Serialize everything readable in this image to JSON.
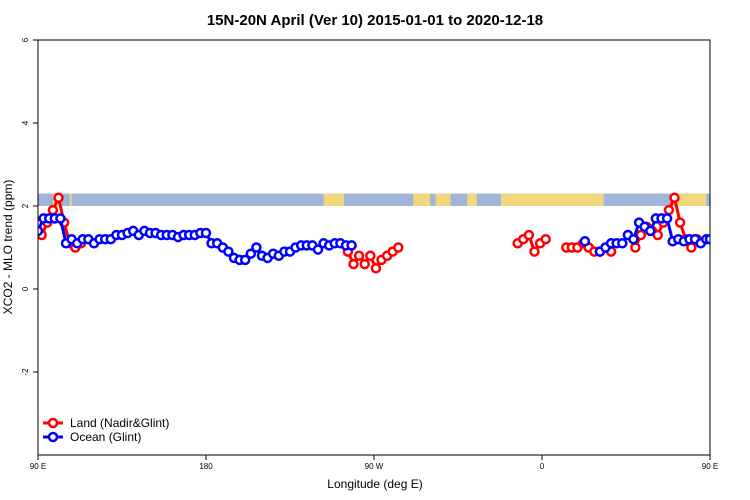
{
  "chart_data": {
    "type": "line",
    "title": "15N-20N April (Ver 10)   2015-01-01 to 2020-12-18",
    "xlabel": "Longitude (deg E)",
    "ylabel": "XCO2 - MLO trend (ppm)",
    "xlim": [
      90,
      450
    ],
    "ylim": [
      -4,
      6
    ],
    "x_ticks": [
      {
        "value": 90,
        "label": "90 E"
      },
      {
        "value": 180,
        "label": "180"
      },
      {
        "value": 270,
        "label": "90 W"
      },
      {
        "value": 360,
        "label": "0"
      },
      {
        "value": 450,
        "label": "90 E"
      },
      {
        "value": 540,
        "label": "180"
      }
    ],
    "y_ticks": [
      {
        "value": -2,
        "label": "-2"
      },
      {
        "value": 0,
        "label": "0"
      },
      {
        "value": 2,
        "label": "2"
      },
      {
        "value": 4,
        "label": "4"
      },
      {
        "value": 6,
        "label": "6"
      }
    ],
    "legend_position": "bottom-left",
    "land_band": {
      "y_from": 2.0,
      "y_to": 2.3,
      "ocean_color": "#9fb6d9",
      "land_color": "#f3d77e"
    },
    "series": [
      {
        "name": "Land (Nadir&Glint)",
        "color": "#ff0000",
        "segments": [
          [
            [
              92,
              1.3
            ],
            [
              95,
              1.6
            ],
            [
              98,
              1.9
            ],
            [
              101,
              2.2
            ],
            [
              104,
              1.6
            ],
            [
              107,
              1.1
            ],
            [
              110,
              1.0
            ],
            [
              113,
              1.1
            ]
          ],
          [
            [
              256,
              0.9
            ],
            [
              259,
              0.6
            ],
            [
              262,
              0.8
            ],
            [
              265,
              0.6
            ],
            [
              268,
              0.8
            ],
            [
              271,
              0.5
            ],
            [
              274,
              0.7
            ],
            [
              277,
              0.8
            ],
            [
              280,
              0.9
            ],
            [
              283,
              1.0
            ]
          ],
          [
            [
              347,
              1.1
            ],
            [
              350,
              1.2
            ],
            [
              353,
              1.3
            ],
            [
              356,
              0.9
            ],
            [
              359,
              1.1
            ],
            [
              362,
              1.2
            ]
          ],
          [
            [
              373,
              1.0
            ],
            [
              376,
              1.0
            ],
            [
              379,
              1.0
            ],
            [
              382,
              1.1
            ],
            [
              385,
              1.0
            ],
            [
              388,
              0.9
            ],
            [
              391,
              0.9
            ],
            [
              394,
              1.0
            ],
            [
              397,
              0.9
            ]
          ],
          [
            [
              410,
              1.0
            ],
            [
              413,
              1.3
            ],
            [
              416,
              1.5
            ],
            [
              419,
              1.4
            ],
            [
              422,
              1.3
            ],
            [
              425,
              1.6
            ],
            [
              428,
              1.9
            ],
            [
              431,
              2.2
            ],
            [
              434,
              1.6
            ],
            [
              437,
              1.2
            ],
            [
              440,
              1.0
            ],
            [
              443,
              1.2
            ]
          ]
        ]
      },
      {
        "name": "Ocean (Glint)",
        "color": "#0000ff",
        "segments": [
          [
            [
              90,
              1.4
            ],
            [
              93,
              1.7
            ],
            [
              96,
              1.7
            ],
            [
              99,
              1.7
            ],
            [
              102,
              1.7
            ],
            [
              105,
              1.1
            ],
            [
              108,
              1.2
            ],
            [
              111,
              1.1
            ],
            [
              114,
              1.2
            ],
            [
              117,
              1.2
            ],
            [
              120,
              1.1
            ],
            [
              123,
              1.2
            ],
            [
              126,
              1.2
            ],
            [
              129,
              1.2
            ],
            [
              132,
              1.3
            ],
            [
              135,
              1.3
            ],
            [
              138,
              1.35
            ],
            [
              141,
              1.4
            ],
            [
              144,
              1.3
            ],
            [
              147,
              1.4
            ],
            [
              150,
              1.35
            ],
            [
              153,
              1.35
            ],
            [
              156,
              1.3
            ],
            [
              159,
              1.3
            ],
            [
              162,
              1.3
            ],
            [
              165,
              1.25
            ],
            [
              168,
              1.3
            ],
            [
              171,
              1.3
            ],
            [
              174,
              1.3
            ],
            [
              177,
              1.35
            ],
            [
              180,
              1.35
            ],
            [
              183,
              1.1
            ],
            [
              186,
              1.1
            ],
            [
              189,
              1.0
            ],
            [
              192,
              0.9
            ],
            [
              195,
              0.75
            ],
            [
              198,
              0.7
            ],
            [
              201,
              0.7
            ],
            [
              204,
              0.85
            ],
            [
              207,
              1.0
            ],
            [
              210,
              0.8
            ],
            [
              213,
              0.75
            ],
            [
              216,
              0.85
            ],
            [
              219,
              0.8
            ],
            [
              222,
              0.9
            ],
            [
              225,
              0.9
            ],
            [
              228,
              1.0
            ],
            [
              231,
              1.05
            ],
            [
              234,
              1.05
            ],
            [
              237,
              1.05
            ],
            [
              240,
              0.95
            ],
            [
              243,
              1.1
            ],
            [
              246,
              1.05
            ],
            [
              249,
              1.1
            ],
            [
              252,
              1.1
            ],
            [
              255,
              1.05
            ],
            [
              258,
              1.05
            ]
          ],
          [
            [
              383,
              1.15
            ]
          ],
          [
            [
              391,
              0.9
            ],
            [
              394,
              1.0
            ],
            [
              397,
              1.1
            ],
            [
              400,
              1.1
            ],
            [
              403,
              1.1
            ],
            [
              406,
              1.3
            ],
            [
              409,
              1.2
            ],
            [
              412,
              1.6
            ],
            [
              415,
              1.5
            ],
            [
              418,
              1.4
            ],
            [
              421,
              1.7
            ],
            [
              424,
              1.7
            ],
            [
              427,
              1.7
            ],
            [
              430,
              1.15
            ],
            [
              433,
              1.2
            ],
            [
              436,
              1.15
            ],
            [
              439,
              1.2
            ],
            [
              442,
              1.2
            ],
            [
              445,
              1.1
            ],
            [
              448,
              1.2
            ],
            [
              450,
              1.2
            ]
          ]
        ]
      }
    ]
  }
}
